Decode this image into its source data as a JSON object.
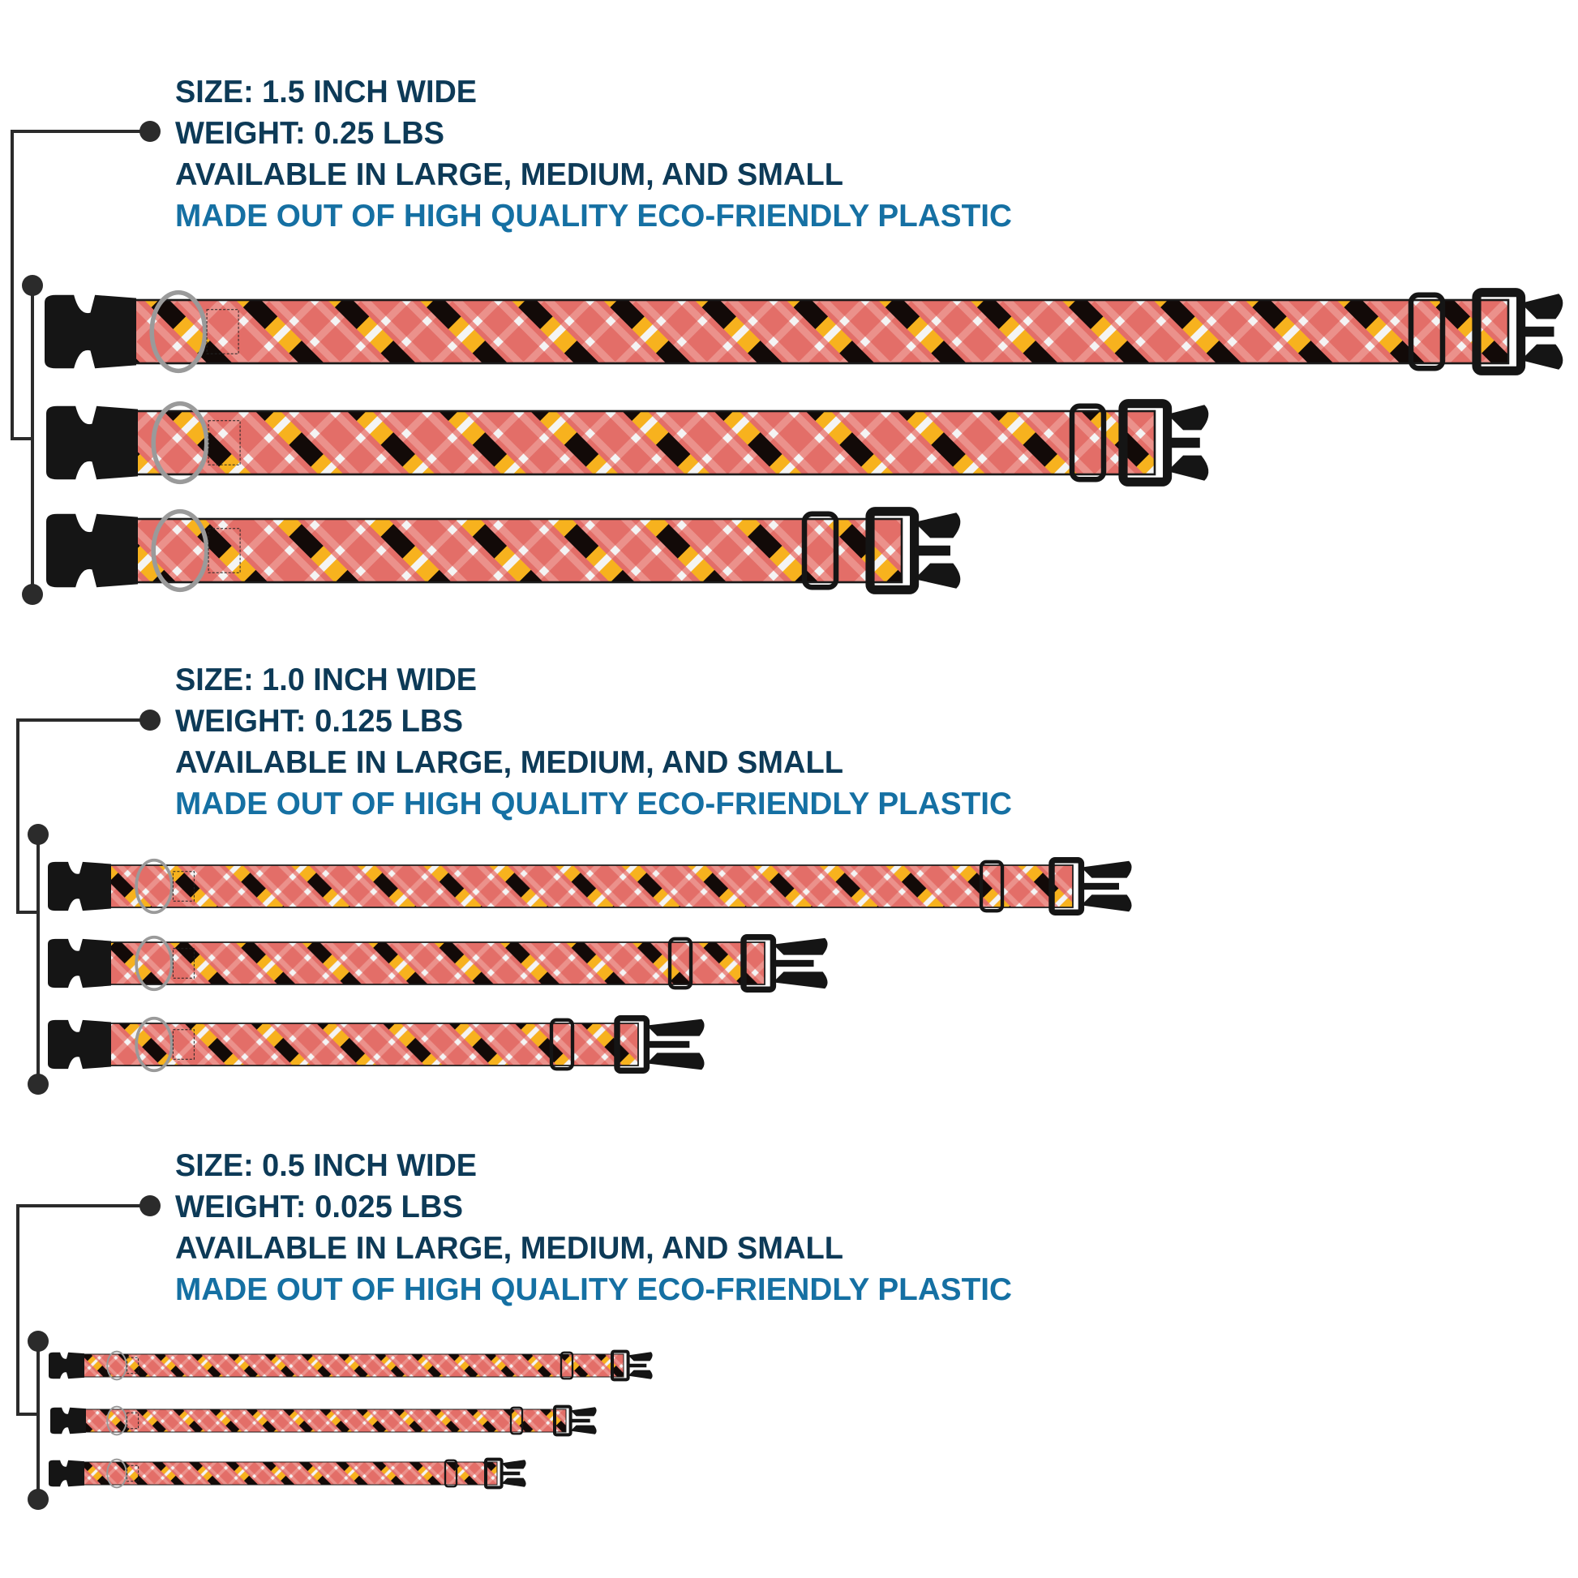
{
  "colors": {
    "heading": "#0d3a57",
    "highlight": "#1570a3",
    "connector": "#2b2b2b",
    "strap_base": "#e36e68",
    "strap_light": "#ee9a94",
    "strap_dark": "#120a08",
    "strap_yellow": "#f7b21e",
    "strap_white": "#f4f4f4",
    "hardware": "#151515",
    "ring": "#9a9a9a"
  },
  "groups": [
    {
      "size": "SIZE: 1.5 INCH WIDE",
      "weight": "WEIGHT: 0.25 LBS",
      "availability": "AVAILABLE IN LARGE, MEDIUM, AND SMALL",
      "material": "MADE OUT OF HIGH QUALITY ECO-FRIENDLY PLASTIC",
      "collars": [
        "large",
        "medium",
        "small"
      ]
    },
    {
      "size": "SIZE: 1.0 INCH WIDE",
      "weight": "WEIGHT: 0.125 LBS",
      "availability": "AVAILABLE IN LARGE, MEDIUM, AND SMALL",
      "material": "MADE OUT OF HIGH QUALITY ECO-FRIENDLY PLASTIC",
      "collars": [
        "large",
        "medium",
        "small"
      ]
    },
    {
      "size": "SIZE: 0.5 INCH WIDE",
      "weight": "WEIGHT: 0.025 LBS",
      "availability": "AVAILABLE IN LARGE, MEDIUM, AND SMALL",
      "material": "MADE OUT OF HIGH QUALITY ECO-FRIENDLY PLASTIC",
      "collars": [
        "large",
        "medium",
        "small"
      ]
    }
  ]
}
